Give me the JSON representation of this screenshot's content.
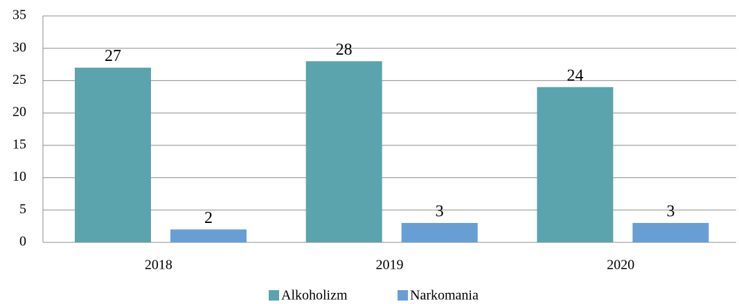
{
  "chart_data": {
    "type": "bar",
    "categories": [
      "2018",
      "2019",
      "2020"
    ],
    "series": [
      {
        "name": "Alkoholizm",
        "color": "#5ba3ad",
        "values": [
          27,
          28,
          24
        ]
      },
      {
        "name": "Narkomania",
        "color": "#679fd4",
        "values": [
          2,
          3,
          3
        ]
      }
    ],
    "ylim": [
      0,
      35
    ],
    "yticks": [
      0,
      5,
      10,
      15,
      20,
      25,
      30,
      35
    ],
    "grid": true,
    "legend": "bottom",
    "data_labels": true
  }
}
